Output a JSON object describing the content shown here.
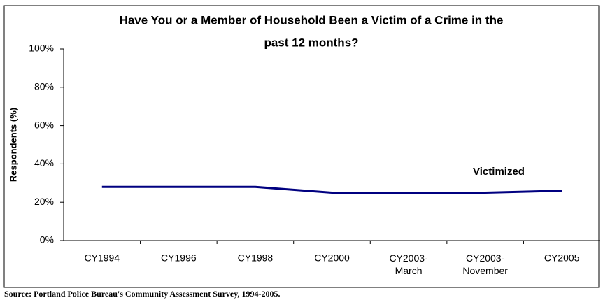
{
  "chart_data": {
    "type": "line",
    "title": [
      "Have You or a Member of Household Been a Victim of a Crime in the",
      "past 12 months?"
    ],
    "categories": [
      "CY1994",
      "CY1996",
      "CY1998",
      "CY2000",
      "CY2003-\nMarch",
      "CY2003-\nNovember",
      "CY2005"
    ],
    "series": [
      {
        "name": "Victimized",
        "color": "#000080",
        "values": [
          28,
          28,
          28,
          25,
          25,
          25,
          26
        ]
      }
    ],
    "ylabel": "Respondents (%)",
    "ylim": [
      0,
      100
    ],
    "yticks": [
      {
        "value": 0,
        "label": "0%"
      },
      {
        "value": 20,
        "label": "20%"
      },
      {
        "value": 40,
        "label": "40%"
      },
      {
        "value": 60,
        "label": "60%"
      },
      {
        "value": 80,
        "label": "80%"
      },
      {
        "value": 100,
        "label": "100%"
      }
    ],
    "source": "Source: Portland Police Bureau's Community Assessment Survey, 1994-2005."
  }
}
